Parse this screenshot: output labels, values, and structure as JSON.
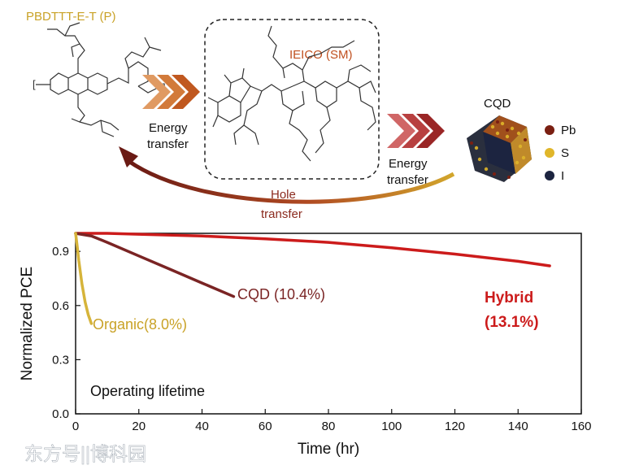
{
  "scheme": {
    "polymer_label": "PBDTTT-E-T (P)",
    "small_molecule_label": "IEICO (SM)",
    "cqd_label": "CQD",
    "energy_transfer_1": [
      "Energy",
      "transfer"
    ],
    "energy_transfer_2": [
      "Energy",
      "transfer"
    ],
    "hole_transfer": [
      "Hole",
      "transfer"
    ],
    "legend": [
      {
        "label": "Pb",
        "color": "#7a1f12"
      },
      {
        "label": "S",
        "color": "#e0b62a"
      },
      {
        "label": "I",
        "color": "#1c2440"
      }
    ],
    "colors": {
      "polymer": "#c9a227",
      "sm": "#c0501f",
      "arrow_orange": "#d27a3a",
      "arrow_red": "#b03030"
    }
  },
  "watermark": "东方号||博科园",
  "chart_data": {
    "type": "line",
    "xlabel": "Time (hr)",
    "ylabel": "Normalized PCE",
    "xlim": [
      0,
      160
    ],
    "ylim": [
      0.0,
      1.0
    ],
    "xticks": [
      0,
      20,
      40,
      60,
      80,
      100,
      120,
      140,
      160
    ],
    "yticks": [
      0.0,
      0.3,
      0.6,
      0.9
    ],
    "ytick_labels": [
      "0.0",
      "0.3",
      "0.6",
      "0.9"
    ],
    "annotation": "Operating lifetime",
    "series": [
      {
        "name": "Hybrid",
        "label_lines": [
          "Hybrid",
          "(13.1%)"
        ],
        "color": "#cc1b1b",
        "x": [
          0,
          10,
          20,
          40,
          60,
          80,
          100,
          120,
          140,
          150
        ],
        "y": [
          1.0,
          1.0,
          0.995,
          0.985,
          0.97,
          0.95,
          0.92,
          0.885,
          0.845,
          0.82
        ]
      },
      {
        "name": "CQD (10.4%)",
        "label_lines": [
          "CQD (10.4%)"
        ],
        "color": "#7a2424",
        "x": [
          0,
          5,
          10,
          20,
          30,
          40,
          50
        ],
        "y": [
          1.0,
          0.985,
          0.95,
          0.875,
          0.8,
          0.725,
          0.65
        ]
      },
      {
        "name": "Organic(8.0%)",
        "label_lines": [
          "Organic(8.0%)"
        ],
        "color": "#d6b43a",
        "x": [
          0,
          0.5,
          1,
          2,
          3,
          4,
          5
        ],
        "y": [
          1.0,
          0.93,
          0.85,
          0.72,
          0.62,
          0.55,
          0.5
        ]
      }
    ]
  }
}
